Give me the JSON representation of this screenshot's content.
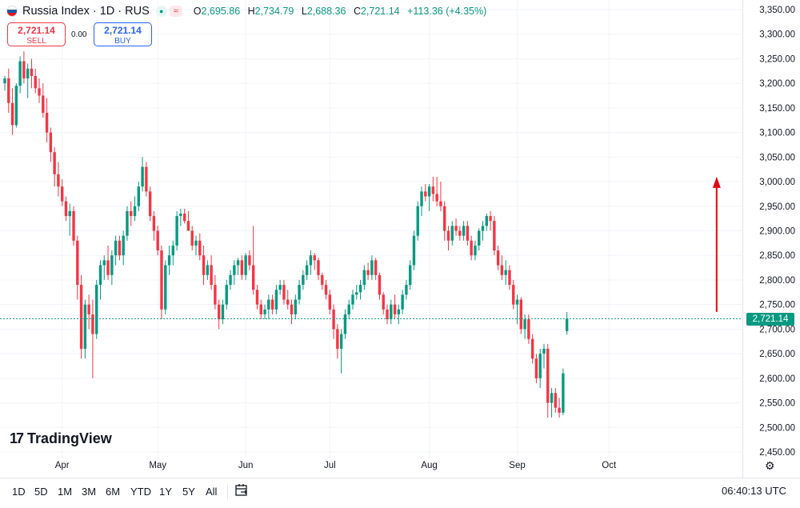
{
  "header": {
    "symbol": "Russia Index · 1D · RUS",
    "flag_colors": [
      "#ffffff",
      "#1c57a5",
      "#e4181c"
    ],
    "open_label": "O",
    "open": "2,695.86",
    "high_label": "H",
    "high": "2,734.79",
    "low_label": "L",
    "low": "2,688.36",
    "close_label": "C",
    "close": "2,721.14",
    "change": "+113.36 (+4.35%)",
    "eye_icon": "eye-icon",
    "approx_icon": "≈"
  },
  "trade": {
    "sell_price": "2,721.14",
    "sell_label": "SELL",
    "spread": "0.00",
    "buy_price": "2,721.14",
    "buy_label": "BUY"
  },
  "brand": {
    "name": "TradingView",
    "mark": "17"
  },
  "toolbar": {
    "ranges": [
      "1D",
      "5D",
      "1M",
      "3M",
      "6M",
      "YTD",
      "1Y",
      "5Y",
      "All"
    ],
    "time": "06:40:13 UTC"
  },
  "colors": {
    "up": "#089981",
    "down": "#f23645",
    "arrow": "#e30613",
    "grid": "#f0f3fa"
  },
  "chart_data": {
    "type": "candlestick",
    "title": "Russia Index · 1D · RUS",
    "ylim": [
      2450,
      3365
    ],
    "y_ticks": [
      "3,350.00",
      "3,300.00",
      "3,250.00",
      "3,200.00",
      "3,150.00",
      "3,100.00",
      "3,050.00",
      "3,000.00",
      "2,950.00",
      "2,900.00",
      "2,850.00",
      "2,800.00",
      "2,750.00",
      "2,700.00",
      "2,650.00",
      "2,600.00",
      "2,550.00",
      "2,500.00",
      "2,450.00"
    ],
    "y_tick_values": [
      3350,
      3300,
      3250,
      3200,
      3150,
      3100,
      3050,
      3000,
      2950,
      2900,
      2850,
      2800,
      2750,
      2700,
      2650,
      2600,
      2550,
      2500,
      2450
    ],
    "x_labels": [
      "Apr",
      "May",
      "Jun",
      "Jul",
      "Aug",
      "Sep",
      "Oct"
    ],
    "x_label_index": [
      15,
      40,
      63,
      85,
      111,
      134,
      158
    ],
    "last_price": 2721.14,
    "last_price_label": "2,721.14",
    "annotation": {
      "type": "arrow-up",
      "index": 178,
      "from": 2735,
      "to": 3010
    },
    "candles": [
      [
        3200,
        3215,
        3185,
        3210
      ],
      [
        3210,
        3230,
        3140,
        3160
      ],
      [
        3160,
        3190,
        3095,
        3115
      ],
      [
        3115,
        3200,
        3110,
        3195
      ],
      [
        3195,
        3255,
        3180,
        3245
      ],
      [
        3245,
        3265,
        3200,
        3210
      ],
      [
        3210,
        3240,
        3170,
        3230
      ],
      [
        3230,
        3250,
        3190,
        3215
      ],
      [
        3215,
        3230,
        3180,
        3190
      ],
      [
        3190,
        3210,
        3160,
        3175
      ],
      [
        3175,
        3200,
        3130,
        3140
      ],
      [
        3140,
        3170,
        3080,
        3100
      ],
      [
        3100,
        3110,
        3040,
        3060
      ],
      [
        3060,
        3070,
        2990,
        3015
      ],
      [
        3015,
        3040,
        2970,
        2990
      ],
      [
        2990,
        3005,
        2950,
        2960
      ],
      [
        2960,
        2970,
        2920,
        2930
      ],
      [
        2930,
        2955,
        2890,
        2940
      ],
      [
        2940,
        2950,
        2870,
        2880
      ],
      [
        2880,
        2890,
        2760,
        2790
      ],
      [
        2790,
        2810,
        2640,
        2660
      ],
      [
        2660,
        2760,
        2640,
        2750
      ],
      [
        2750,
        2770,
        2700,
        2730
      ],
      [
        2730,
        2760,
        2600,
        2690
      ],
      [
        2690,
        2800,
        2680,
        2790
      ],
      [
        2790,
        2840,
        2760,
        2830
      ],
      [
        2830,
        2850,
        2800,
        2840
      ],
      [
        2840,
        2870,
        2800,
        2810
      ],
      [
        2810,
        2860,
        2790,
        2850
      ],
      [
        2850,
        2890,
        2830,
        2880
      ],
      [
        2880,
        2890,
        2840,
        2850
      ],
      [
        2850,
        2900,
        2830,
        2890
      ],
      [
        2890,
        2950,
        2880,
        2940
      ],
      [
        2940,
        2960,
        2910,
        2930
      ],
      [
        2930,
        2970,
        2920,
        2950
      ],
      [
        2950,
        3000,
        2940,
        2990
      ],
      [
        2990,
        3050,
        2980,
        3030
      ],
      [
        3030,
        3040,
        2970,
        2980
      ],
      [
        2980,
        2990,
        2920,
        2930
      ],
      [
        2930,
        2940,
        2880,
        2900
      ],
      [
        2900,
        2910,
        2850,
        2860
      ],
      [
        2860,
        2870,
        2720,
        2740
      ],
      [
        2740,
        2840,
        2730,
        2830
      ],
      [
        2830,
        2870,
        2810,
        2850
      ],
      [
        2850,
        2880,
        2830,
        2870
      ],
      [
        2870,
        2940,
        2860,
        2930
      ],
      [
        2930,
        2945,
        2910,
        2935
      ],
      [
        2935,
        2945,
        2915,
        2920
      ],
      [
        2920,
        2940,
        2900,
        2900
      ],
      [
        2900,
        2910,
        2860,
        2870
      ],
      [
        2870,
        2890,
        2850,
        2880
      ],
      [
        2880,
        2895,
        2840,
        2850
      ],
      [
        2850,
        2870,
        2790,
        2810
      ],
      [
        2810,
        2840,
        2800,
        2830
      ],
      [
        2830,
        2850,
        2780,
        2790
      ],
      [
        2790,
        2810,
        2740,
        2750
      ],
      [
        2750,
        2760,
        2700,
        2720
      ],
      [
        2720,
        2760,
        2710,
        2750
      ],
      [
        2750,
        2800,
        2740,
        2790
      ],
      [
        2790,
        2820,
        2780,
        2810
      ],
      [
        2810,
        2840,
        2790,
        2830
      ],
      [
        2830,
        2845,
        2810,
        2840
      ],
      [
        2840,
        2850,
        2800,
        2810
      ],
      [
        2810,
        2855,
        2800,
        2850
      ],
      [
        2850,
        2860,
        2820,
        2830
      ],
      [
        2830,
        2910,
        2770,
        2780
      ],
      [
        2780,
        2790,
        2740,
        2750
      ],
      [
        2750,
        2760,
        2720,
        2730
      ],
      [
        2730,
        2750,
        2720,
        2740
      ],
      [
        2740,
        2770,
        2720,
        2760
      ],
      [
        2760,
        2770,
        2730,
        2740
      ],
      [
        2740,
        2790,
        2730,
        2780
      ],
      [
        2780,
        2800,
        2770,
        2790
      ],
      [
        2790,
        2800,
        2750,
        2760
      ],
      [
        2760,
        2780,
        2740,
        2750
      ],
      [
        2750,
        2760,
        2710,
        2730
      ],
      [
        2730,
        2770,
        2720,
        2760
      ],
      [
        2760,
        2800,
        2750,
        2790
      ],
      [
        2790,
        2820,
        2780,
        2810
      ],
      [
        2810,
        2840,
        2800,
        2830
      ],
      [
        2830,
        2860,
        2810,
        2850
      ],
      [
        2850,
        2855,
        2820,
        2840
      ],
      [
        2840,
        2845,
        2800,
        2810
      ],
      [
        2810,
        2815,
        2780,
        2790
      ],
      [
        2790,
        2800,
        2760,
        2770
      ],
      [
        2770,
        2780,
        2730,
        2740
      ],
      [
        2740,
        2750,
        2680,
        2700
      ],
      [
        2700,
        2710,
        2640,
        2660
      ],
      [
        2660,
        2700,
        2610,
        2690
      ],
      [
        2690,
        2740,
        2680,
        2730
      ],
      [
        2730,
        2760,
        2720,
        2750
      ],
      [
        2750,
        2780,
        2740,
        2770
      ],
      [
        2770,
        2790,
        2760,
        2775
      ],
      [
        2775,
        2800,
        2760,
        2790
      ],
      [
        2790,
        2830,
        2780,
        2820
      ],
      [
        2820,
        2835,
        2800,
        2810
      ],
      [
        2810,
        2850,
        2800,
        2840
      ],
      [
        2840,
        2845,
        2800,
        2810
      ],
      [
        2810,
        2815,
        2760,
        2770
      ],
      [
        2770,
        2775,
        2730,
        2740
      ],
      [
        2740,
        2750,
        2710,
        2720
      ],
      [
        2720,
        2760,
        2710,
        2750
      ],
      [
        2750,
        2770,
        2720,
        2730
      ],
      [
        2730,
        2750,
        2710,
        2740
      ],
      [
        2740,
        2780,
        2730,
        2770
      ],
      [
        2770,
        2800,
        2760,
        2790
      ],
      [
        2790,
        2840,
        2780,
        2830
      ],
      [
        2830,
        2900,
        2820,
        2890
      ],
      [
        2890,
        2960,
        2880,
        2950
      ],
      [
        2950,
        2990,
        2930,
        2980
      ],
      [
        2980,
        2995,
        2960,
        2970
      ],
      [
        2970,
        2995,
        2940,
        2990
      ],
      [
        2990,
        3010,
        2960,
        2975
      ],
      [
        2975,
        3010,
        2950,
        2960
      ],
      [
        2960,
        3000,
        2940,
        2950
      ],
      [
        2950,
        2960,
        2880,
        2900
      ],
      [
        2900,
        2910,
        2860,
        2880
      ],
      [
        2880,
        2920,
        2870,
        2910
      ],
      [
        2910,
        2925,
        2890,
        2900
      ],
      [
        2900,
        2910,
        2880,
        2890
      ],
      [
        2890,
        2920,
        2880,
        2910
      ],
      [
        2910,
        2920,
        2870,
        2880
      ],
      [
        2880,
        2890,
        2840,
        2850
      ],
      [
        2850,
        2880,
        2840,
        2870
      ],
      [
        2870,
        2905,
        2860,
        2900
      ],
      [
        2900,
        2920,
        2880,
        2910
      ],
      [
        2910,
        2935,
        2900,
        2930
      ],
      [
        2930,
        2940,
        2900,
        2920
      ],
      [
        2920,
        2930,
        2850,
        2860
      ],
      [
        2860,
        2870,
        2820,
        2830
      ],
      [
        2830,
        2850,
        2800,
        2810
      ],
      [
        2810,
        2840,
        2790,
        2820
      ],
      [
        2820,
        2830,
        2780,
        2790
      ],
      [
        2790,
        2800,
        2740,
        2750
      ],
      [
        2750,
        2770,
        2710,
        2760
      ],
      [
        2760,
        2765,
        2690,
        2700
      ],
      [
        2700,
        2730,
        2680,
        2720
      ],
      [
        2720,
        2730,
        2670,
        2680
      ],
      [
        2680,
        2690,
        2630,
        2640
      ],
      [
        2640,
        2650,
        2590,
        2600
      ],
      [
        2600,
        2660,
        2580,
        2650
      ],
      [
        2650,
        2670,
        2620,
        2660
      ],
      [
        2660,
        2670,
        2520,
        2550
      ],
      [
        2550,
        2580,
        2520,
        2570
      ],
      [
        2570,
        2580,
        2530,
        2540
      ],
      [
        2540,
        2560,
        2520,
        2530
      ],
      [
        2530,
        2620,
        2525,
        2610
      ],
      [
        2695.86,
        2734.79,
        2688.36,
        2721.14
      ]
    ]
  }
}
